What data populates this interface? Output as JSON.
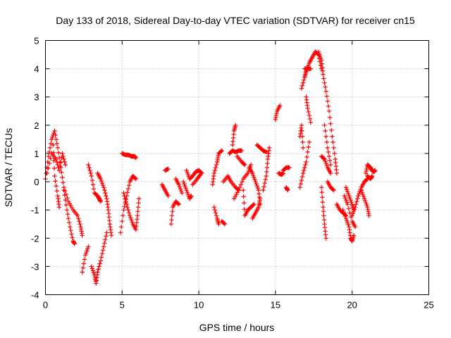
{
  "chart_data": {
    "type": "scatter",
    "title": "Day 133 of 2018, Sidereal Day-to-day VTEC variation (SDTVAR) for receiver cn15",
    "xlabel": "GPS time / hours",
    "ylabel": "SDTVAR / TECUs",
    "xlim": [
      0,
      25
    ],
    "ylim": [
      -4,
      5
    ],
    "xticks": [
      0,
      5,
      10,
      15,
      20,
      25
    ],
    "yticks": [
      -4,
      -3,
      -2,
      -1,
      0,
      1,
      2,
      3,
      4,
      5
    ],
    "x_tick_labels": [
      "0",
      "5",
      "10",
      "15",
      "20",
      "25"
    ],
    "y_tick_labels": [
      "-4",
      "-3",
      "-2",
      "-1",
      "0",
      "1",
      "2",
      "3",
      "4",
      "5"
    ],
    "grid": true,
    "marker": "+",
    "series": [
      {
        "name": "SDTVAR",
        "color": "#ff0000",
        "segments": [
          [
            [
              0.0,
              0.1
            ],
            [
              0.2,
              0.9
            ],
            [
              0.4,
              1.5
            ],
            [
              0.6,
              1.8
            ],
            [
              0.8,
              1.2
            ],
            [
              1.0,
              0.5
            ],
            [
              1.2,
              -0.2
            ],
            [
              1.5,
              -0.7
            ],
            [
              1.8,
              -1.0
            ],
            [
              2.1,
              -1.2
            ],
            [
              2.3,
              -1.6
            ],
            [
              2.4,
              -1.9
            ]
          ],
          [
            [
              0.1,
              0.3
            ],
            [
              0.4,
              1.0
            ],
            [
              0.7,
              0.8
            ],
            [
              0.9,
              0.4
            ],
            [
              1.1,
              1.0
            ],
            [
              1.3,
              0.6
            ]
          ],
          [
            [
              0.5,
              1.3
            ],
            [
              0.6,
              0.2
            ],
            [
              0.8,
              -0.5
            ],
            [
              0.9,
              -0.9
            ]
          ],
          [
            [
              1.2,
              -0.3
            ],
            [
              1.4,
              -1.0
            ],
            [
              1.6,
              -1.6
            ],
            [
              1.8,
              -2.1
            ],
            [
              1.9,
              -2.2
            ]
          ],
          [
            [
              2.4,
              -3.2
            ],
            [
              2.6,
              -2.6
            ],
            [
              2.8,
              -2.3
            ]
          ],
          [
            [
              2.8,
              0.6
            ],
            [
              3.0,
              0.2
            ],
            [
              3.2,
              -0.4
            ],
            [
              3.4,
              -0.5
            ],
            [
              3.5,
              -0.6
            ],
            [
              3.6,
              -0.7
            ]
          ],
          [
            [
              3.0,
              -3.0
            ],
            [
              3.2,
              -3.3
            ],
            [
              3.3,
              -3.6
            ],
            [
              3.4,
              -3.2
            ],
            [
              3.6,
              -2.8
            ],
            [
              3.8,
              -2.3
            ],
            [
              4.0,
              -1.8
            ]
          ],
          [
            [
              3.4,
              0.3
            ],
            [
              3.6,
              0.1
            ],
            [
              3.8,
              -0.2
            ],
            [
              4.0,
              -0.6
            ],
            [
              4.1,
              -1.0
            ],
            [
              4.2,
              -1.5
            ],
            [
              4.3,
              -1.9
            ]
          ],
          [
            [
              4.9,
              -1.8
            ],
            [
              5.1,
              -1.0
            ],
            [
              5.3,
              -0.5
            ],
            [
              5.5,
              0.0
            ],
            [
              5.7,
              0.2
            ],
            [
              5.9,
              0.1
            ]
          ],
          [
            [
              5.0,
              1.0
            ],
            [
              5.2,
              0.95
            ],
            [
              5.4,
              0.95
            ],
            [
              5.6,
              0.9
            ],
            [
              5.8,
              0.9
            ],
            [
              5.9,
              0.85
            ]
          ],
          [
            [
              5.1,
              -0.4
            ],
            [
              5.3,
              -0.8
            ],
            [
              5.5,
              -1.2
            ],
            [
              5.7,
              -1.5
            ],
            [
              5.9,
              -1.7
            ],
            [
              6.0,
              -1.2
            ],
            [
              6.1,
              -0.6
            ]
          ],
          [
            [
              7.6,
              -0.1
            ],
            [
              7.8,
              -0.3
            ],
            [
              8.0,
              -0.5
            ]
          ],
          [
            [
              7.8,
              0.4
            ],
            [
              8.0,
              0.45
            ]
          ],
          [
            [
              8.2,
              -1.5
            ],
            [
              8.3,
              -0.9
            ],
            [
              8.5,
              -0.7
            ],
            [
              8.7,
              -0.8
            ]
          ],
          [
            [
              8.5,
              0.1
            ],
            [
              8.7,
              -0.1
            ],
            [
              8.9,
              -0.4
            ]
          ],
          [
            [
              9.0,
              0.0
            ],
            [
              9.2,
              -0.3
            ],
            [
              9.4,
              -0.6
            ],
            [
              9.5,
              -0.5
            ]
          ],
          [
            [
              9.2,
              0.4
            ],
            [
              9.4,
              0.1
            ],
            [
              9.6,
              0.2
            ],
            [
              9.8,
              0.35
            ],
            [
              10.0,
              0.4
            ],
            [
              10.2,
              0.3
            ]
          ],
          [
            [
              9.6,
              -0.1
            ],
            [
              9.9,
              0.1
            ],
            [
              10.1,
              0.25
            ]
          ],
          [
            [
              10.9,
              -0.1
            ],
            [
              11.0,
              0.3
            ],
            [
              11.2,
              0.7
            ],
            [
              11.3,
              1.0
            ],
            [
              11.5,
              1.1
            ]
          ],
          [
            [
              11.0,
              -0.9
            ],
            [
              11.2,
              -1.3
            ],
            [
              11.3,
              -1.5
            ]
          ],
          [
            [
              11.5,
              -1.4
            ],
            [
              11.7,
              -1.5
            ]
          ],
          [
            [
              11.6,
              0.0
            ],
            [
              11.9,
              0.2
            ],
            [
              12.1,
              0.0
            ],
            [
              12.4,
              -0.2
            ],
            [
              12.6,
              -0.3
            ]
          ],
          [
            [
              12.0,
              1.0
            ],
            [
              12.2,
              1.1
            ],
            [
              12.4,
              1.05
            ],
            [
              12.6,
              1.1
            ],
            [
              12.8,
              1.1
            ]
          ],
          [
            [
              12.2,
              1.3
            ],
            [
              12.3,
              1.8
            ],
            [
              12.4,
              2.0
            ]
          ],
          [
            [
              12.3,
              -0.6
            ],
            [
              12.6,
              -0.3
            ],
            [
              12.9,
              0.1
            ],
            [
              13.2,
              0.3
            ],
            [
              13.4,
              0.6
            ]
          ],
          [
            [
              12.5,
              0.9
            ],
            [
              12.8,
              0.7
            ],
            [
              13.0,
              0.6
            ]
          ],
          [
            [
              12.9,
              -0.3
            ],
            [
              13.0,
              -1.2
            ],
            [
              13.2,
              -1.0
            ],
            [
              13.4,
              -0.9
            ],
            [
              13.6,
              -0.8
            ]
          ],
          [
            [
              13.3,
              0.5
            ],
            [
              13.5,
              0.3
            ],
            [
              13.7,
              0.0
            ],
            [
              13.9,
              -0.3
            ],
            [
              14.0,
              -0.8
            ]
          ],
          [
            [
              13.5,
              -1.3
            ],
            [
              13.7,
              -1.1
            ],
            [
              13.9,
              -0.9
            ],
            [
              14.0,
              -0.6
            ]
          ],
          [
            [
              13.8,
              1.3
            ],
            [
              14.0,
              1.2
            ],
            [
              14.2,
              1.1
            ],
            [
              14.4,
              1.05
            ]
          ],
          [
            [
              14.2,
              -0.3
            ],
            [
              14.4,
              0.2
            ],
            [
              14.5,
              0.8
            ],
            [
              14.6,
              1.2
            ]
          ],
          [
            [
              15.0,
              2.2
            ],
            [
              15.1,
              2.5
            ],
            [
              15.3,
              2.7
            ]
          ],
          [
            [
              15.2,
              0.3
            ],
            [
              15.4,
              0.25
            ],
            [
              15.5,
              0.3
            ]
          ],
          [
            [
              15.5,
              0.4
            ],
            [
              15.7,
              0.5
            ],
            [
              15.9,
              0.5
            ]
          ],
          [
            [
              15.7,
              -0.2
            ],
            [
              15.8,
              -0.3
            ]
          ],
          [
            [
              16.6,
              1.6
            ],
            [
              16.7,
              2.0
            ],
            [
              16.8,
              1.2
            ]
          ],
          [
            [
              16.7,
              3.3
            ],
            [
              16.9,
              3.7
            ],
            [
              17.0,
              3.9
            ],
            [
              17.2,
              4.2
            ],
            [
              17.4,
              4.4
            ],
            [
              17.6,
              4.6
            ],
            [
              17.8,
              4.5
            ],
            [
              18.0,
              4.0
            ]
          ],
          [
            [
              16.9,
              4.0
            ],
            [
              17.1,
              4.0
            ],
            [
              17.3,
              4.0
            ]
          ],
          [
            [
              17.0,
              3.0
            ],
            [
              17.1,
              2.6
            ],
            [
              17.3,
              2.1
            ]
          ],
          [
            [
              16.6,
              -0.2
            ],
            [
              16.8,
              0.3
            ],
            [
              17.0,
              0.7
            ],
            [
              17.2,
              1.4
            ]
          ],
          [
            [
              17.8,
              4.6
            ],
            [
              18.0,
              4.3
            ],
            [
              18.1,
              3.8
            ],
            [
              18.3,
              3.2
            ],
            [
              18.5,
              2.5
            ],
            [
              18.7,
              1.6
            ],
            [
              18.9,
              0.8
            ],
            [
              19.0,
              0.3
            ]
          ],
          [
            [
              18.2,
              2.0
            ],
            [
              18.4,
              1.2
            ],
            [
              18.6,
              0.6
            ]
          ],
          [
            [
              18.0,
              0.9
            ],
            [
              18.2,
              0.8
            ],
            [
              18.4,
              0.5
            ],
            [
              18.6,
              0.3
            ]
          ],
          [
            [
              18.0,
              -0.2
            ],
            [
              18.1,
              -0.9
            ],
            [
              18.2,
              -1.5
            ],
            [
              18.3,
              -2.0
            ]
          ],
          [
            [
              18.4,
              0.0
            ],
            [
              18.6,
              -0.2
            ],
            [
              18.8,
              -0.3
            ]
          ],
          [
            [
              19.0,
              -0.8
            ],
            [
              19.2,
              -1.0
            ],
            [
              19.4,
              -1.1
            ],
            [
              19.6,
              -1.2
            ]
          ],
          [
            [
              19.4,
              -1.0
            ],
            [
              19.6,
              -1.3
            ],
            [
              19.8,
              -1.6
            ],
            [
              19.9,
              -2.0
            ],
            [
              20.0,
              -2.1
            ],
            [
              20.1,
              -1.9
            ]
          ],
          [
            [
              19.5,
              -0.5
            ],
            [
              19.7,
              -0.8
            ],
            [
              20.0,
              -1.4
            ],
            [
              20.2,
              -1.6
            ]
          ],
          [
            [
              20.0,
              -1.2
            ],
            [
              20.2,
              -0.9
            ],
            [
              20.4,
              -0.5
            ],
            [
              20.6,
              -0.2
            ],
            [
              20.8,
              0.0
            ],
            [
              21.0,
              0.1
            ]
          ],
          [
            [
              19.6,
              -0.2
            ],
            [
              19.8,
              -0.5
            ],
            [
              20.0,
              -0.8
            ],
            [
              20.1,
              -1.0
            ]
          ],
          [
            [
              20.6,
              -0.3
            ],
            [
              20.8,
              -0.6
            ],
            [
              21.0,
              -0.9
            ],
            [
              21.1,
              -1.2
            ]
          ],
          [
            [
              20.9,
              0.3
            ],
            [
              21.0,
              0.6
            ],
            [
              21.1,
              0.55
            ],
            [
              21.2,
              0.5
            ],
            [
              21.3,
              0.4
            ],
            [
              21.4,
              0.35
            ],
            [
              21.5,
              0.4
            ]
          ],
          [
            [
              21.0,
              0.2
            ],
            [
              21.2,
              0.1
            ],
            [
              21.3,
              0.2
            ]
          ]
        ]
      }
    ]
  }
}
